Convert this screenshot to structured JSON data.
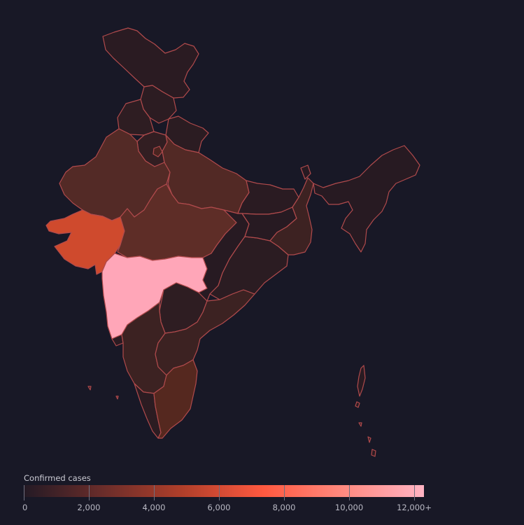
{
  "legend": {
    "title": "Confirmed cases",
    "min": 0,
    "max": 12300,
    "ticks": [
      {
        "value": 0,
        "label": "0"
      },
      {
        "value": 2000,
        "label": "2,000"
      },
      {
        "value": 4000,
        "label": "4,000"
      },
      {
        "value": 6000,
        "label": "6,000"
      },
      {
        "value": 8000,
        "label": "8,000"
      },
      {
        "value": 10000,
        "label": "10,000"
      },
      {
        "value": 12000,
        "label": "12,000+"
      }
    ],
    "gradient_colors": [
      "#241a25",
      "#6b2d2a",
      "#b13f2a",
      "#ff5940",
      "#ff8a80",
      "#ffb3c3"
    ]
  },
  "map": {
    "background_color": "#181826",
    "border_color": "#b04a4c",
    "regions": [
      {
        "name": "jammu-kashmir",
        "color": "#2a1b22"
      },
      {
        "name": "himachal-pradesh",
        "color": "#2c1c22"
      },
      {
        "name": "punjab",
        "color": "#2e1d22"
      },
      {
        "name": "uttarakhand",
        "color": "#2b1c22"
      },
      {
        "name": "haryana",
        "color": "#321e22"
      },
      {
        "name": "delhi",
        "color": "#4a2420"
      },
      {
        "name": "rajasthan",
        "color": "#532a26"
      },
      {
        "name": "uttar-pradesh",
        "color": "#522925"
      },
      {
        "name": "bihar",
        "color": "#2a1b22"
      },
      {
        "name": "gujarat",
        "color": "#cf4a2d"
      },
      {
        "name": "madhya-pradesh",
        "color": "#5e2d27"
      },
      {
        "name": "maharashtra",
        "color": "#ffa6b8"
      },
      {
        "name": "goa",
        "color": "#2a1b22"
      },
      {
        "name": "karnataka",
        "color": "#2e1d22"
      },
      {
        "name": "telangana",
        "color": "#3c2222"
      },
      {
        "name": "andhra-pradesh",
        "color": "#3c2222"
      },
      {
        "name": "kerala",
        "color": "#2c1c22"
      },
      {
        "name": "tamil-nadu",
        "color": "#55281f"
      },
      {
        "name": "chhattisgarh",
        "color": "#271a22"
      },
      {
        "name": "odisha",
        "color": "#2b1c22"
      },
      {
        "name": "jharkhand",
        "color": "#271a22"
      },
      {
        "name": "west-bengal",
        "color": "#3d2222"
      },
      {
        "name": "sikkim",
        "color": "#271a22"
      },
      {
        "name": "northeast-states",
        "color": "#271a22"
      },
      {
        "name": "andaman-nicobar",
        "color": "#2a1b22"
      },
      {
        "name": "lakshadweep",
        "color": "#2a1b22"
      }
    ]
  }
}
